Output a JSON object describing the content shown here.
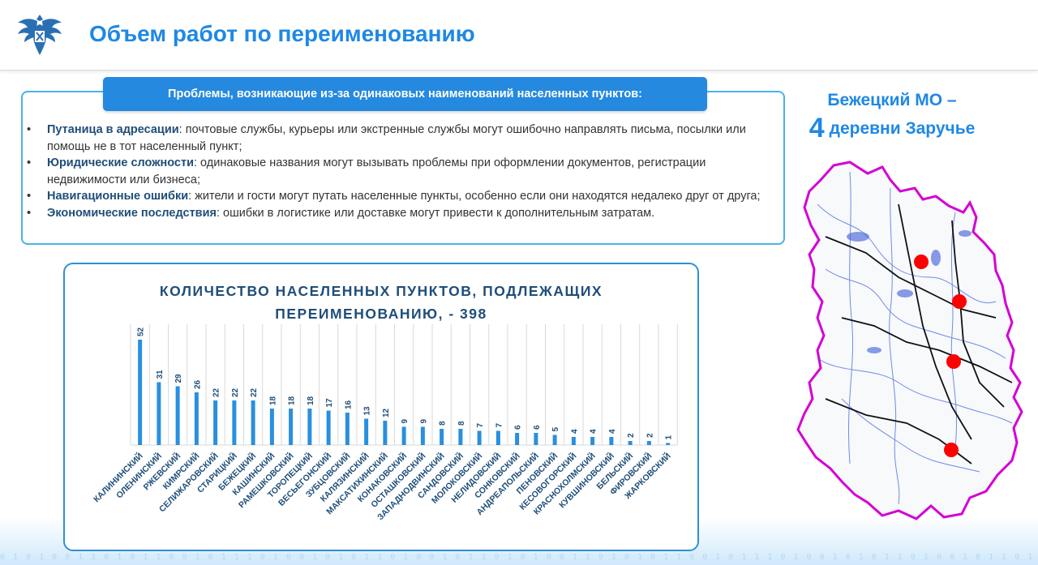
{
  "header": {
    "title": "Объем работ по переименованию"
  },
  "problems": {
    "title": "Проблемы, возникающие из-за одинаковых наименований населенных пунктов:",
    "items": [
      {
        "term": "Путаница в адресации",
        "text": ": почтовые службы, курьеры или экстренные службы могут ошибочно направлять письма, посылки или помощь не в тот населенный пункт;"
      },
      {
        "term": "Юридические сложности",
        "text": ": одинаковые названия могут вызывать проблемы при оформлении документов, регистрации недвижимости или бизнеса;"
      },
      {
        "term": "Навигационные ошибки",
        "text": ": жители и гости могут путать населенные пункты, особенно если они находятся недалеко друг от друга;"
      },
      {
        "term": "Экономические последствия",
        "text": ": ошибки в логистике или доставке могут привести к дополнительным затратам."
      }
    ]
  },
  "region": {
    "title_line1": "Бежецкий МО –",
    "count": "4",
    "title_line2_rest": "деревни Заручье"
  },
  "chart_data": {
    "type": "bar",
    "title": "КОЛИЧЕСТВО НАСЕЛЕННЫХ ПУНКТОВ, ПОДЛЕЖАЩИХ ПЕРЕИМЕНОВАНИЮ, - 398",
    "title_line1": "КОЛИЧЕСТВО НАСЕЛЕННЫХ ПУНКТОВ, ПОДЛЕЖАЩИХ",
    "title_line2": "ПЕРЕИМЕНОВАНИЮ, - 398",
    "categories": [
      "КАЛИНИНСКИЙ",
      "ОЛЕНИНСКИЙ",
      "РЖЕВСКИЙ",
      "КИМРСКИЙ",
      "СЕЛИЖАРОВСКИЙ",
      "СТАРИЦКИЙ",
      "БЕЖЕЦКИЙ",
      "КАШИНСКИЙ",
      "РАМЕШКОВСКИЙ",
      "ТОРОПЕЦКИЙ",
      "ВЕСЬЕГОНСКИЙ",
      "ЗУБЦОВСКИЙ",
      "КАЛЯЗИНСКИЙ",
      "МАКСАТИХИНСКИЙ",
      "КОНАКОВСКИЙ",
      "ОСТАШКОВСКИЙ",
      "ЗАПАДНОДВИНСКИЙ",
      "САНДОВСКИЙ",
      "МОЛОКОВСКИЙ",
      "НЕЛИДОВСКИЙ",
      "СОНКОВСКИЙ",
      "АНДРЕАПОЛЬСКИЙ",
      "ПЕНОВСКИЙ",
      "КЕСОВОГОРСКИЙ",
      "КРАСНОХОЛМСКИЙ",
      "КУВШИНОВСКИЙ",
      "БЕЛЬСКИЙ",
      "ФИРОВСКИЙ",
      "ЖАРКОВСКИЙ"
    ],
    "values": [
      52,
      31,
      29,
      26,
      22,
      22,
      22,
      18,
      18,
      18,
      17,
      16,
      13,
      12,
      9,
      9,
      8,
      8,
      7,
      7,
      6,
      6,
      5,
      4,
      4,
      4,
      2,
      2,
      1
    ],
    "ylim": [
      0,
      52
    ],
    "grid": "vertical",
    "legend": "none",
    "colors": {
      "bar": "#2a8fde",
      "label": "#1f4e79",
      "grid": "#d9d9d9"
    }
  },
  "colors": {
    "accent": "#1e88e5",
    "box_border": "#49b3e8",
    "marker": "#ff0000",
    "map_border": "#d400d4"
  }
}
